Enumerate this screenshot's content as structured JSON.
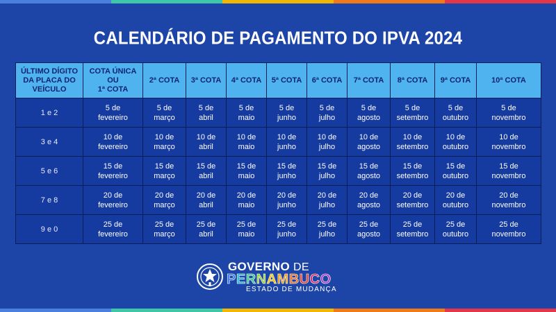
{
  "title": "CALENDÁRIO DE PAGAMENTO DO IPVA 2024",
  "stripe_colors": [
    "#4a7fe0",
    "#3fc6a8",
    "#f2b705",
    "#ee7a1a",
    "#e2364b"
  ],
  "table": {
    "headers": [
      [
        "ÚLTIMO DÍGITO",
        "DA PLACA DO",
        "VEÍCULO"
      ],
      [
        "COTA ÚNICA",
        "OU",
        "1ª COTA"
      ],
      [
        "2ª COTA"
      ],
      [
        "3ª COTA"
      ],
      [
        "4ª COTA"
      ],
      [
        "5ª COTA"
      ],
      [
        "6ª COTA"
      ],
      [
        "7ª COTA"
      ],
      [
        "8ª COTA"
      ],
      [
        "9ª COTA"
      ],
      [
        "10ª COTA"
      ]
    ],
    "rows": [
      {
        "digits": "1 e 2",
        "dates": [
          [
            "5 de",
            "fevereiro"
          ],
          [
            "5 de",
            "março"
          ],
          [
            "5 de",
            "abril"
          ],
          [
            "5 de",
            "maio"
          ],
          [
            "5 de",
            "junho"
          ],
          [
            "5 de",
            "julho"
          ],
          [
            "5 de",
            "agosto"
          ],
          [
            "5 de",
            "setembro"
          ],
          [
            "5 de",
            "outubro"
          ],
          [
            "5 de",
            "novembro"
          ]
        ]
      },
      {
        "digits": "3 e 4",
        "dates": [
          [
            "10 de",
            "fevereiro"
          ],
          [
            "10 de",
            "março"
          ],
          [
            "10 de",
            "abril"
          ],
          [
            "10 de",
            "maio"
          ],
          [
            "10 de",
            "junho"
          ],
          [
            "10 de",
            "julho"
          ],
          [
            "10 de",
            "agosto"
          ],
          [
            "10 de",
            "setembro"
          ],
          [
            "10 de",
            "outubro"
          ],
          [
            "10 de",
            "novembro"
          ]
        ]
      },
      {
        "digits": "5 e 6",
        "dates": [
          [
            "15 de",
            "fevereiro"
          ],
          [
            "15 de",
            "março"
          ],
          [
            "15 de",
            "abril"
          ],
          [
            "15 de",
            "maio"
          ],
          [
            "15 de",
            "junho"
          ],
          [
            "15 de",
            "julho"
          ],
          [
            "15 de",
            "agosto"
          ],
          [
            "15 de",
            "setembro"
          ],
          [
            "15 de",
            "outubro"
          ],
          [
            "15 de",
            "novembro"
          ]
        ]
      },
      {
        "digits": "7 e 8",
        "dates": [
          [
            "20 de",
            "fevereiro"
          ],
          [
            "20 de",
            "março"
          ],
          [
            "20 de",
            "abril"
          ],
          [
            "20 de",
            "maio"
          ],
          [
            "20 de",
            "junho"
          ],
          [
            "20 de",
            "julho"
          ],
          [
            "20 de",
            "agosto"
          ],
          [
            "20 de",
            "setembro"
          ],
          [
            "20 de",
            "outubro"
          ],
          [
            "20 de",
            "novembro"
          ]
        ]
      },
      {
        "digits": "9 e 0",
        "dates": [
          [
            "25 de",
            "fevereiro"
          ],
          [
            "25 de",
            "março"
          ],
          [
            "25 de",
            "abril"
          ],
          [
            "25 de",
            "maio"
          ],
          [
            "25 de",
            "junho"
          ],
          [
            "25 de",
            "julho"
          ],
          [
            "25 de",
            "agosto"
          ],
          [
            "25 de",
            "setembro"
          ],
          [
            "25 de",
            "outubro"
          ],
          [
            "25 de",
            "novembro"
          ]
        ]
      }
    ]
  },
  "logo": {
    "governo": "GOVERNO",
    "de": "DE",
    "pernambuco": "PERNAMBUCO",
    "pernambuco_colors": [
      "#3a7be8",
      "#2fb6d0",
      "#3ec98c",
      "#9ad13a",
      "#f2c20c",
      "#f29a12",
      "#ee6a1c",
      "#e8412c",
      "#d9336e",
      "#a448c4"
    ],
    "subtitle": "ESTADO DE MUDANÇA"
  }
}
